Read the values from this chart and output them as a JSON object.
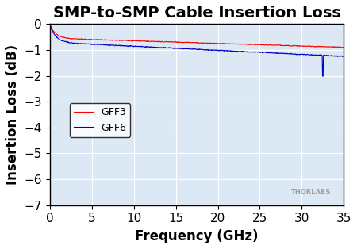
{
  "title": "SMP-to-SMP Cable Insertion Loss",
  "xlabel": "Frequency (GHz)",
  "ylabel": "Insertion Loss (dB)",
  "xlim": [
    0,
    35
  ],
  "ylim": [
    -7,
    0
  ],
  "xticks": [
    0,
    5,
    10,
    15,
    20,
    25,
    30,
    35
  ],
  "yticks": [
    0,
    -1,
    -2,
    -3,
    -4,
    -5,
    -6,
    -7
  ],
  "bg_color": "#dce9f5",
  "grid_color": "#ffffff",
  "line1_color": "#ff0000",
  "line2_color": "#0000cc",
  "line1_label": "GFF3",
  "line2_label": "GFF6",
  "thorlabs_text": "THORLABS",
  "title_fontsize": 14,
  "axis_label_fontsize": 12,
  "tick_fontsize": 11
}
